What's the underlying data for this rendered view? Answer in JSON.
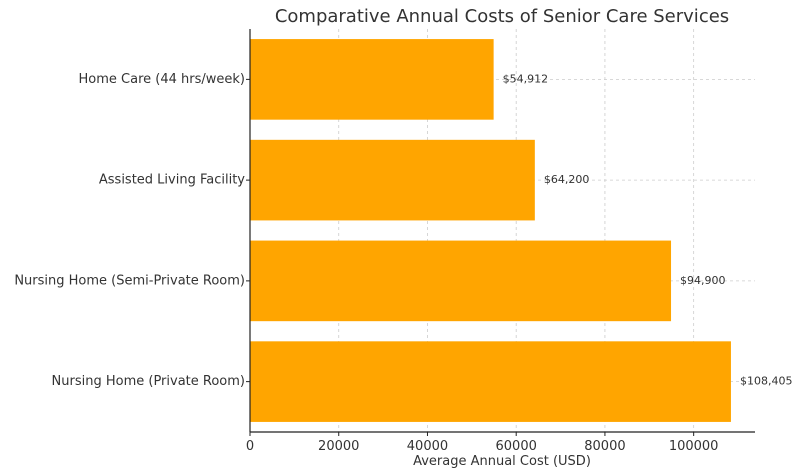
{
  "chart_data": {
    "type": "bar",
    "orientation": "horizontal",
    "title": "Comparative Annual Costs of Senior Care Services",
    "xlabel": "Average Annual Cost (USD)",
    "ylabel": "",
    "categories": [
      "Home Care (44 hrs/week)",
      "Assisted Living Facility",
      "Nursing Home (Semi-Private Room)",
      "Nursing Home (Private Room)"
    ],
    "values": [
      54912,
      64200,
      94900,
      108405
    ],
    "data_labels": [
      "$54,912",
      "$64,200",
      "$94,900",
      "$108,405"
    ],
    "xlim": [
      0,
      113825
    ],
    "xticks": [
      0,
      20000,
      40000,
      60000,
      80000,
      100000
    ],
    "xtick_labels": [
      "0",
      "20000",
      "40000",
      "60000",
      "80000",
      "100000"
    ],
    "grid": true,
    "bar_color": "#FFA500"
  }
}
